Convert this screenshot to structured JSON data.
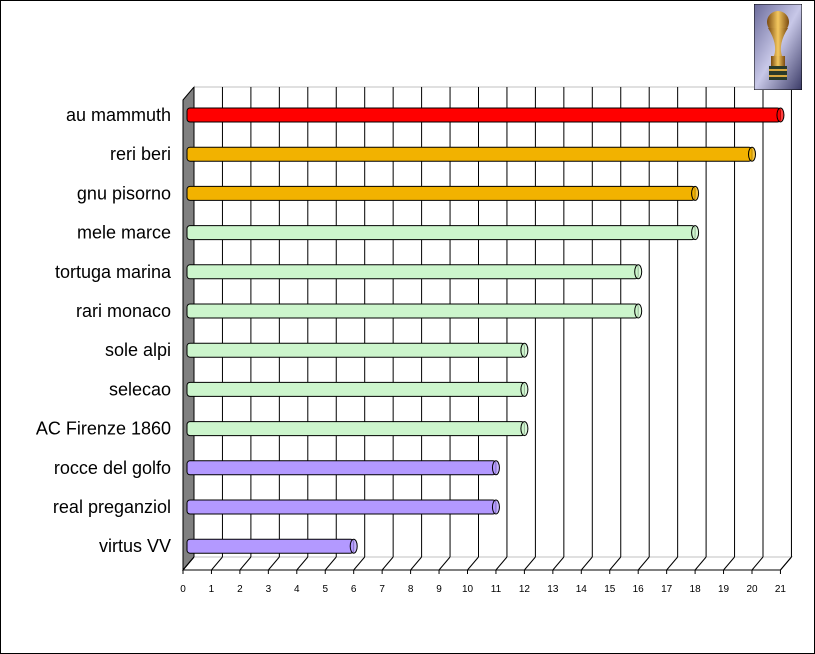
{
  "chart_data": {
    "type": "bar",
    "orientation": "horizontal",
    "categories": [
      "au mammuth",
      "reri beri",
      "gnu pisorno",
      "mele marce",
      "tortuga marina",
      "rari monaco",
      "sole alpi",
      "selecao",
      "AC Firenze 1860",
      "rocce del golfo",
      "real preganziol",
      "virtus VV"
    ],
    "values": [
      21,
      20,
      18,
      18,
      16,
      16,
      12,
      12,
      12,
      11,
      11,
      6
    ],
    "bar_colors": [
      "#ff0000",
      "#f2b200",
      "#f2b200",
      "#ccf5cc",
      "#ccf5cc",
      "#ccf5cc",
      "#ccf5cc",
      "#ccf5cc",
      "#ccf5cc",
      "#b399ff",
      "#b399ff",
      "#b399ff"
    ],
    "x_ticks": [
      "0",
      "1",
      "2",
      "3",
      "4",
      "5",
      "6",
      "7",
      "8",
      "9",
      "10",
      "11",
      "12",
      "13",
      "14",
      "15",
      "16",
      "17",
      "18",
      "19",
      "20",
      "21"
    ],
    "xlim": [
      0,
      21
    ],
    "grid": true,
    "style": "3d",
    "wall_color": "#808080",
    "title": "",
    "xlabel": "",
    "ylabel": ""
  },
  "decoration": {
    "icon": "world-cup-trophy-icon"
  }
}
